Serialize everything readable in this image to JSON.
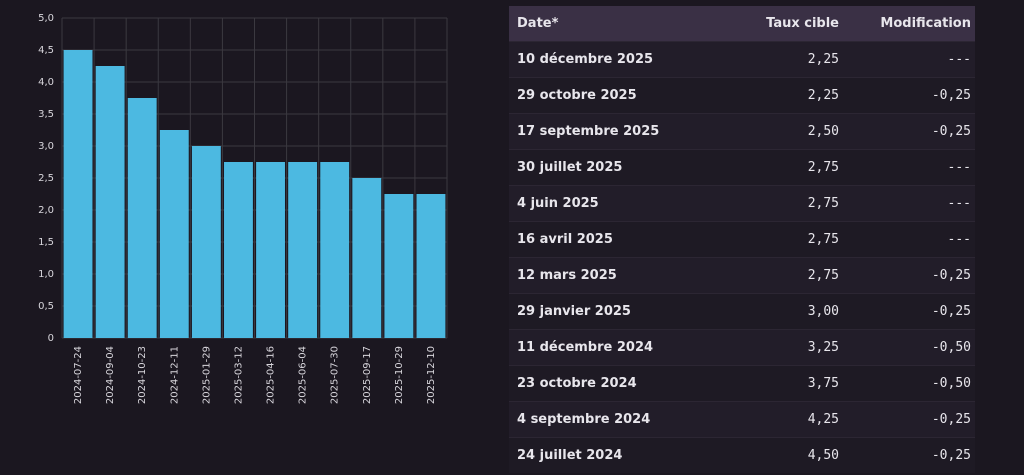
{
  "chart_data": {
    "type": "bar",
    "categories": [
      "2024-07-24",
      "2024-09-04",
      "2024-10-23",
      "2024-12-11",
      "2025-01-29",
      "2025-03-12",
      "2025-04-16",
      "2025-06-04",
      "2025-07-30",
      "2025-09-17",
      "2025-10-29",
      "2025-12-10"
    ],
    "values": [
      4.5,
      4.25,
      3.75,
      3.25,
      3.0,
      2.75,
      2.75,
      2.75,
      2.75,
      2.5,
      2.25,
      2.25
    ],
    "color": "#4cb9e1",
    "ylim": [
      0,
      5
    ],
    "yticks": [
      0,
      {
        "value": 0.5,
        "label": "0,5"
      },
      {
        "value": 1,
        "label": "1,0"
      },
      {
        "value": 1.5,
        "label": "1,5"
      },
      {
        "value": 2,
        "label": "2,0"
      },
      {
        "value": 2.5,
        "label": "2,5"
      },
      {
        "value": 3,
        "label": "3,0"
      },
      {
        "value": 3.5,
        "label": "3,5"
      },
      {
        "value": 4,
        "label": "4,0"
      },
      {
        "value": 4.5,
        "label": "4,5"
      },
      {
        "value": 5,
        "label": "5,0"
      }
    ],
    "grid": true
  },
  "table": {
    "header": [
      "Date*",
      "Taux cible",
      "Modification"
    ],
    "rows": [
      [
        "10 décembre 2025",
        "2,25",
        "---"
      ],
      [
        "29 octobre 2025",
        "2,25",
        "-0,25"
      ],
      [
        "17 septembre 2025",
        "2,50",
        "-0,25"
      ],
      [
        "30 juillet 2025",
        "2,75",
        "---"
      ],
      [
        "4 juin 2025",
        "2,75",
        "---"
      ],
      [
        "16 avril 2025",
        "2,75",
        "---"
      ],
      [
        "12 mars 2025",
        "2,75",
        "-0,25"
      ],
      [
        "29 janvier 2025",
        "3,00",
        "-0,25"
      ],
      [
        "11 décembre 2024",
        "3,25",
        "-0,50"
      ],
      [
        "23 octobre 2024",
        "3,75",
        "-0,50"
      ],
      [
        "4 septembre 2024",
        "4,25",
        "-0,25"
      ],
      [
        "24 juillet 2024",
        "4,50",
        "-0,25"
      ]
    ]
  }
}
